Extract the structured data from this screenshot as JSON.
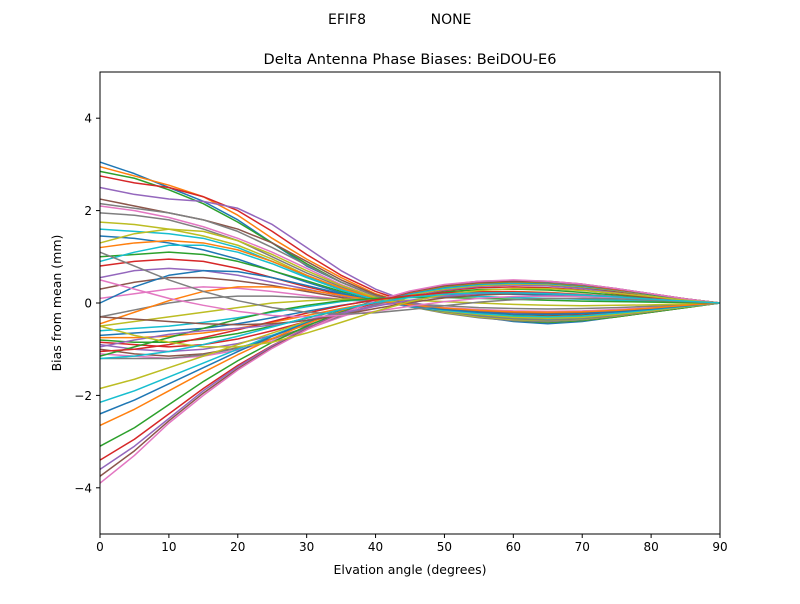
{
  "figure": {
    "suptitle_left": "EFIF8",
    "suptitle_right": "NONE"
  },
  "chart_data": {
    "type": "line",
    "title": "Delta Antenna Phase Biases: BeiDOU-E6",
    "xlabel": "Elvation angle (degrees)",
    "ylabel": "Bias from mean (mm)",
    "xlim": [
      0,
      90
    ],
    "ylim": [
      -5,
      5
    ],
    "xticks": [
      0,
      10,
      20,
      30,
      40,
      50,
      60,
      70,
      80,
      90
    ],
    "yticks": [
      -4,
      -2,
      0,
      2,
      4
    ],
    "x": [
      0,
      5,
      10,
      15,
      20,
      25,
      30,
      35,
      40,
      45,
      50,
      55,
      60,
      65,
      70,
      75,
      80,
      85,
      90
    ],
    "grid": false,
    "legend": "none",
    "colors": [
      "#1f77b4",
      "#ff7f0e",
      "#2ca02c",
      "#d62728",
      "#9467bd",
      "#8c564b",
      "#e377c2",
      "#7f7f7f",
      "#bcbd22",
      "#17becf"
    ],
    "series": [
      {
        "values": [
          3.05,
          2.8,
          2.5,
          2.2,
          1.8,
          1.3,
          0.8,
          0.45,
          0.15,
          -0.05,
          -0.2,
          -0.3,
          -0.4,
          -0.45,
          -0.4,
          -0.3,
          -0.2,
          -0.1,
          0
        ]
      },
      {
        "values": [
          2.95,
          2.75,
          2.55,
          2.3,
          1.9,
          1.4,
          0.95,
          0.55,
          0.2,
          -0.02,
          -0.18,
          -0.28,
          -0.38,
          -0.42,
          -0.38,
          -0.3,
          -0.2,
          -0.1,
          0
        ]
      },
      {
        "values": [
          2.85,
          2.7,
          2.45,
          2.15,
          1.75,
          1.3,
          0.85,
          0.45,
          0.15,
          -0.05,
          -0.2,
          -0.3,
          -0.38,
          -0.42,
          -0.38,
          -0.3,
          -0.2,
          -0.1,
          0
        ]
      },
      {
        "values": [
          2.75,
          2.6,
          2.5,
          2.3,
          2.0,
          1.55,
          1.05,
          0.6,
          0.25,
          0.0,
          -0.15,
          -0.25,
          -0.33,
          -0.38,
          -0.35,
          -0.28,
          -0.18,
          -0.08,
          0
        ]
      },
      {
        "values": [
          2.5,
          2.35,
          2.25,
          2.2,
          2.05,
          1.7,
          1.2,
          0.7,
          0.3,
          0.02,
          -0.12,
          -0.22,
          -0.3,
          -0.35,
          -0.33,
          -0.27,
          -0.17,
          -0.08,
          0
        ]
      },
      {
        "values": [
          2.25,
          2.1,
          1.95,
          1.8,
          1.6,
          1.3,
          0.9,
          0.5,
          0.18,
          -0.03,
          -0.18,
          -0.28,
          -0.35,
          -0.38,
          -0.35,
          -0.28,
          -0.18,
          -0.08,
          0
        ]
      },
      {
        "values": [
          2.1,
          2.0,
          1.85,
          1.65,
          1.4,
          1.1,
          0.75,
          0.4,
          0.12,
          -0.06,
          -0.2,
          -0.3,
          -0.37,
          -0.4,
          -0.36,
          -0.28,
          -0.18,
          -0.08,
          0
        ]
      },
      {
        "values": [
          1.95,
          1.9,
          1.8,
          1.6,
          1.35,
          1.0,
          0.65,
          0.35,
          0.1,
          -0.08,
          -0.22,
          -0.32,
          -0.38,
          -0.4,
          -0.36,
          -0.28,
          -0.18,
          -0.08,
          0
        ]
      },
      {
        "values": [
          1.75,
          1.7,
          1.6,
          1.45,
          1.25,
          0.95,
          0.6,
          0.3,
          0.08,
          -0.08,
          -0.2,
          -0.3,
          -0.36,
          -0.38,
          -0.35,
          -0.28,
          -0.18,
          -0.08,
          0
        ]
      },
      {
        "values": [
          1.6,
          1.55,
          1.5,
          1.4,
          1.2,
          0.9,
          0.58,
          0.3,
          0.08,
          -0.07,
          -0.18,
          -0.28,
          -0.33,
          -0.35,
          -0.32,
          -0.26,
          -0.17,
          -0.08,
          0
        ]
      },
      {
        "values": [
          1.45,
          1.4,
          1.3,
          1.15,
          0.95,
          0.7,
          0.45,
          0.22,
          0.05,
          -0.08,
          -0.18,
          -0.26,
          -0.31,
          -0.33,
          -0.3,
          -0.24,
          -0.16,
          -0.07,
          0
        ]
      },
      {
        "values": [
          1.2,
          1.3,
          1.35,
          1.3,
          1.15,
          0.9,
          0.6,
          0.32,
          0.1,
          -0.05,
          -0.16,
          -0.24,
          -0.3,
          -0.32,
          -0.3,
          -0.24,
          -0.16,
          -0.07,
          0
        ]
      },
      {
        "values": [
          1.0,
          1.05,
          1.1,
          1.05,
          0.9,
          0.7,
          0.48,
          0.25,
          0.08,
          -0.05,
          -0.15,
          -0.22,
          -0.27,
          -0.29,
          -0.27,
          -0.22,
          -0.15,
          -0.07,
          0
        ]
      },
      {
        "values": [
          0.8,
          0.9,
          0.95,
          0.9,
          0.75,
          0.55,
          0.35,
          0.18,
          0.05,
          -0.05,
          -0.13,
          -0.2,
          -0.24,
          -0.26,
          -0.24,
          -0.2,
          -0.13,
          -0.06,
          0
        ]
      },
      {
        "values": [
          0.55,
          0.7,
          0.75,
          0.7,
          0.6,
          0.45,
          0.3,
          0.15,
          0.04,
          -0.05,
          -0.12,
          -0.18,
          -0.22,
          -0.24,
          -0.22,
          -0.18,
          -0.12,
          -0.06,
          0
        ]
      },
      {
        "values": [
          0.3,
          0.45,
          0.55,
          0.55,
          0.48,
          0.38,
          0.25,
          0.12,
          0.02,
          -0.06,
          -0.12,
          -0.17,
          -0.2,
          -0.22,
          -0.2,
          -0.16,
          -0.11,
          -0.05,
          0
        ]
      },
      {
        "values": [
          0.1,
          0.2,
          0.3,
          0.35,
          0.32,
          0.25,
          0.16,
          0.08,
          0.0,
          -0.06,
          -0.1,
          -0.14,
          -0.17,
          -0.18,
          -0.17,
          -0.14,
          -0.1,
          -0.05,
          0
        ]
      },
      {
        "values": [
          -0.3,
          -0.15,
          0.0,
          0.1,
          0.15,
          0.15,
          0.12,
          0.08,
          0.03,
          -0.02,
          -0.06,
          -0.1,
          -0.12,
          -0.13,
          -0.12,
          -0.1,
          -0.07,
          -0.04,
          0
        ]
      },
      {
        "values": [
          -0.5,
          -0.4,
          -0.3,
          -0.2,
          -0.1,
          0.0,
          0.05,
          0.08,
          0.08,
          0.06,
          0.03,
          0.0,
          -0.03,
          -0.05,
          -0.06,
          -0.05,
          -0.04,
          -0.02,
          0
        ]
      },
      {
        "values": [
          -0.6,
          -0.55,
          -0.5,
          -0.42,
          -0.32,
          -0.2,
          -0.08,
          0.03,
          0.1,
          0.14,
          0.15,
          0.14,
          0.12,
          0.1,
          0.08,
          0.06,
          0.04,
          0.02,
          0
        ]
      },
      {
        "values": [
          -0.7,
          -0.65,
          -0.6,
          -0.55,
          -0.45,
          -0.32,
          -0.18,
          -0.05,
          0.06,
          0.14,
          0.18,
          0.2,
          0.19,
          0.17,
          0.14,
          0.1,
          0.07,
          0.03,
          0
        ]
      },
      {
        "values": [
          -0.75,
          -0.75,
          -0.72,
          -0.65,
          -0.55,
          -0.42,
          -0.27,
          -0.12,
          0.02,
          0.13,
          0.2,
          0.24,
          0.25,
          0.23,
          0.19,
          0.14,
          0.09,
          0.04,
          0
        ]
      },
      {
        "values": [
          -0.8,
          -0.85,
          -0.85,
          -0.78,
          -0.66,
          -0.5,
          -0.33,
          -0.15,
          0.02,
          0.15,
          0.24,
          0.29,
          0.3,
          0.28,
          0.23,
          0.17,
          0.11,
          0.05,
          0
        ]
      },
      {
        "values": [
          -0.85,
          -0.9,
          -0.95,
          -0.9,
          -0.78,
          -0.6,
          -0.4,
          -0.2,
          0.0,
          0.15,
          0.27,
          0.33,
          0.35,
          0.33,
          0.28,
          0.2,
          0.13,
          0.06,
          0
        ]
      },
      {
        "values": [
          -0.9,
          -1.0,
          -1.05,
          -1.0,
          -0.88,
          -0.7,
          -0.48,
          -0.25,
          -0.03,
          0.15,
          0.28,
          0.36,
          0.39,
          0.37,
          0.31,
          0.23,
          0.15,
          0.07,
          0
        ]
      },
      {
        "values": [
          -1.0,
          -1.1,
          -1.15,
          -1.1,
          -0.97,
          -0.77,
          -0.53,
          -0.28,
          -0.05,
          0.15,
          0.3,
          0.39,
          0.42,
          0.4,
          0.34,
          0.25,
          0.16,
          0.08,
          0
        ]
      },
      {
        "values": [
          -1.1,
          -1.15,
          -1.2,
          -1.15,
          -1.02,
          -0.82,
          -0.57,
          -0.3,
          -0.06,
          0.15,
          0.31,
          0.41,
          0.44,
          0.42,
          0.36,
          0.27,
          0.17,
          0.08,
          0
        ]
      },
      {
        "values": [
          -1.2,
          -1.2,
          -1.2,
          -1.12,
          -0.98,
          -0.78,
          -0.54,
          -0.28,
          -0.04,
          0.16,
          0.32,
          0.42,
          0.45,
          0.43,
          0.37,
          0.28,
          0.18,
          0.08,
          0
        ]
      },
      {
        "values": [
          -1.85,
          -1.65,
          -1.4,
          -1.15,
          -0.9,
          -0.65,
          -0.4,
          -0.18,
          0.02,
          0.18,
          0.3,
          0.38,
          0.41,
          0.4,
          0.35,
          0.27,
          0.17,
          0.08,
          0
        ]
      },
      {
        "values": [
          -2.15,
          -1.9,
          -1.6,
          -1.3,
          -1.0,
          -0.7,
          -0.42,
          -0.18,
          0.03,
          0.2,
          0.32,
          0.4,
          0.43,
          0.42,
          0.36,
          0.28,
          0.18,
          0.08,
          0
        ]
      },
      {
        "values": [
          -2.4,
          -2.1,
          -1.75,
          -1.4,
          -1.05,
          -0.72,
          -0.43,
          -0.17,
          0.05,
          0.22,
          0.35,
          0.42,
          0.45,
          0.43,
          0.37,
          0.28,
          0.18,
          0.08,
          0
        ]
      },
      {
        "values": [
          -2.65,
          -2.3,
          -1.9,
          -1.5,
          -1.12,
          -0.77,
          -0.45,
          -0.18,
          0.05,
          0.23,
          0.36,
          0.43,
          0.46,
          0.44,
          0.38,
          0.29,
          0.19,
          0.09,
          0
        ]
      },
      {
        "values": [
          -3.1,
          -2.7,
          -2.2,
          -1.7,
          -1.25,
          -0.85,
          -0.5,
          -0.2,
          0.05,
          0.24,
          0.37,
          0.44,
          0.47,
          0.45,
          0.39,
          0.3,
          0.19,
          0.09,
          0
        ]
      },
      {
        "values": [
          -3.4,
          -2.95,
          -2.4,
          -1.85,
          -1.35,
          -0.92,
          -0.55,
          -0.22,
          0.04,
          0.24,
          0.38,
          0.45,
          0.48,
          0.46,
          0.4,
          0.3,
          0.2,
          0.09,
          0
        ]
      },
      {
        "values": [
          -3.6,
          -3.1,
          -2.5,
          -1.9,
          -1.38,
          -0.93,
          -0.55,
          -0.22,
          0.05,
          0.25,
          0.39,
          0.46,
          0.49,
          0.46,
          0.4,
          0.31,
          0.2,
          0.09,
          0
        ]
      },
      {
        "values": [
          -3.75,
          -3.2,
          -2.55,
          -1.95,
          -1.42,
          -0.96,
          -0.57,
          -0.23,
          0.05,
          0.25,
          0.39,
          0.47,
          0.49,
          0.47,
          0.41,
          0.31,
          0.2,
          0.09,
          0
        ]
      },
      {
        "values": [
          -3.9,
          -3.3,
          -2.6,
          -2.0,
          -1.45,
          -0.98,
          -0.58,
          -0.24,
          0.05,
          0.26,
          0.4,
          0.47,
          0.5,
          0.47,
          0.41,
          0.31,
          0.2,
          0.09,
          0
        ]
      },
      {
        "values": [
          2.15,
          2.05,
          1.95,
          1.8,
          1.55,
          1.2,
          0.82,
          0.45,
          0.15,
          -0.05,
          -0.18,
          -0.28,
          -0.34,
          -0.37,
          -0.34,
          -0.27,
          -0.18,
          -0.08,
          0
        ]
      },
      {
        "values": [
          1.3,
          1.5,
          1.6,
          1.55,
          1.35,
          1.05,
          0.7,
          0.38,
          0.12,
          -0.05,
          -0.17,
          -0.25,
          -0.31,
          -0.33,
          -0.31,
          -0.25,
          -0.17,
          -0.08,
          0
        ]
      },
      {
        "values": [
          0.9,
          1.1,
          1.25,
          1.25,
          1.1,
          0.85,
          0.55,
          0.28,
          0.07,
          -0.07,
          -0.16,
          -0.23,
          -0.28,
          -0.3,
          -0.28,
          -0.22,
          -0.15,
          -0.07,
          0
        ]
      },
      {
        "values": [
          0.0,
          0.35,
          0.6,
          0.7,
          0.68,
          0.55,
          0.38,
          0.2,
          0.05,
          -0.06,
          -0.14,
          -0.2,
          -0.24,
          -0.25,
          -0.23,
          -0.19,
          -0.13,
          -0.06,
          0
        ]
      },
      {
        "values": [
          -0.45,
          -0.2,
          0.05,
          0.25,
          0.35,
          0.35,
          0.28,
          0.17,
          0.05,
          -0.04,
          -0.11,
          -0.16,
          -0.19,
          -0.2,
          -0.19,
          -0.16,
          -0.11,
          -0.05,
          0
        ]
      },
      {
        "values": [
          -1.15,
          -0.95,
          -0.75,
          -0.55,
          -0.35,
          -0.18,
          -0.05,
          0.05,
          0.1,
          0.12,
          0.12,
          0.1,
          0.08,
          0.06,
          0.04,
          0.03,
          0.02,
          0.01,
          0
        ]
      },
      {
        "values": [
          -1.05,
          -1.0,
          -0.9,
          -0.75,
          -0.58,
          -0.4,
          -0.22,
          -0.06,
          0.07,
          0.16,
          0.22,
          0.24,
          0.24,
          0.22,
          0.18,
          0.13,
          0.09,
          0.04,
          0
        ]
      },
      {
        "values": [
          -0.95,
          -0.8,
          -0.68,
          -0.6,
          -0.55,
          -0.48,
          -0.37,
          -0.22,
          -0.07,
          0.06,
          0.15,
          0.2,
          0.22,
          0.21,
          0.18,
          0.14,
          0.09,
          0.04,
          0
        ]
      },
      {
        "values": [
          -0.3,
          -0.35,
          -0.4,
          -0.45,
          -0.47,
          -0.45,
          -0.38,
          -0.26,
          -0.12,
          0.01,
          0.11,
          0.17,
          0.2,
          0.2,
          0.17,
          0.13,
          0.09,
          0.04,
          0
        ]
      },
      {
        "values": [
          0.5,
          0.3,
          0.1,
          -0.05,
          -0.18,
          -0.27,
          -0.3,
          -0.27,
          -0.18,
          -0.07,
          0.03,
          0.1,
          0.14,
          0.15,
          0.14,
          0.11,
          0.08,
          0.04,
          0
        ]
      },
      {
        "values": [
          1.1,
          0.8,
          0.5,
          0.25,
          0.05,
          -0.1,
          -0.2,
          -0.24,
          -0.21,
          -0.14,
          -0.06,
          0.02,
          0.07,
          0.1,
          0.1,
          0.09,
          0.06,
          0.03,
          0
        ]
      },
      {
        "values": [
          -0.5,
          -0.7,
          -0.85,
          -0.95,
          -0.95,
          -0.85,
          -0.65,
          -0.42,
          -0.18,
          0.03,
          0.18,
          0.27,
          0.31,
          0.31,
          0.27,
          0.21,
          0.14,
          0.06,
          0
        ]
      },
      {
        "values": [
          -1.2,
          -1.15,
          -1.05,
          -0.9,
          -0.72,
          -0.52,
          -0.32,
          -0.14,
          0.01,
          0.12,
          0.19,
          0.22,
          0.22,
          0.2,
          0.17,
          0.13,
          0.08,
          0.04,
          0
        ]
      }
    ]
  }
}
